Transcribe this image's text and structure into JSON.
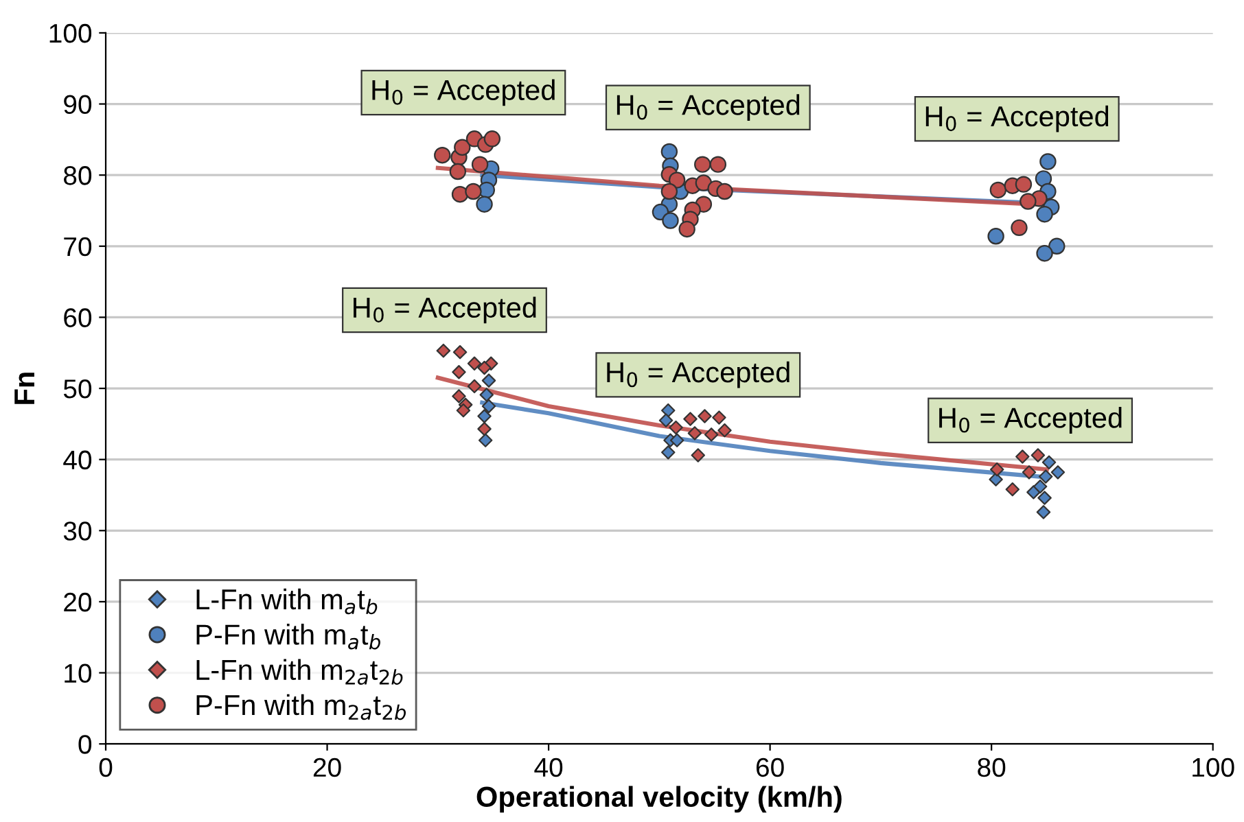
{
  "chart_data": {
    "type": "scatter",
    "xlabel": "Operational velocity (km/h)",
    "ylabel": "Fn",
    "xlim": [
      0,
      100
    ],
    "xticks": [
      0,
      20,
      40,
      60,
      80,
      100
    ],
    "ylim": [
      0,
      100
    ],
    "yticks": [
      0,
      10,
      20,
      30,
      40,
      50,
      60,
      70,
      80,
      90,
      100
    ],
    "grid": "y",
    "legend": "bottom left",
    "series": [
      {
        "name": "L-Fn with m$_{a}$t$_{b}$",
        "color": "#4f81bd",
        "marker": "diamond",
        "x": [
          34.6,
          34.4,
          34.6,
          34.2,
          34.3,
          50.8,
          50.6,
          51.0,
          50.8,
          51.6,
          85.2,
          86.0,
          84.9,
          80.4,
          83.8,
          84.8,
          84.7,
          84.4
        ],
        "values": [
          51.1,
          49.1,
          47.5,
          46.1,
          42.7,
          46.9,
          45.5,
          42.7,
          41.0,
          42.7,
          39.6,
          38.2,
          37.6,
          37.2,
          35.4,
          34.6,
          32.6,
          36.2
        ]
      },
      {
        "name": "P-Fn with m$_{a}$t$_{b}$",
        "color": "#4f81bd",
        "marker": "circle",
        "x": [
          34.8,
          34.6,
          34.4,
          34.2,
          50.9,
          51.0,
          51.9,
          50.9,
          50.1,
          51.0,
          85.1,
          84.7,
          85.1,
          85.4,
          84.8,
          80.4,
          85.9,
          84.8
        ],
        "values": [
          80.9,
          79.3,
          77.9,
          75.9,
          83.3,
          81.3,
          77.7,
          75.9,
          74.8,
          73.6,
          81.9,
          79.5,
          77.7,
          75.5,
          74.5,
          71.4,
          70.0,
          69.0
        ]
      },
      {
        "name": "L-Fn with m$_{2a}$t$_{2b}$",
        "color": "#c0504d",
        "marker": "diamond",
        "x": [
          30.5,
          32.0,
          33.3,
          34.8,
          31.9,
          34.2,
          33.3,
          31.9,
          32.5,
          32.3,
          34.2,
          52.8,
          54.1,
          55.4,
          55.9,
          54.7,
          53.2,
          53.5,
          51.5,
          82.8,
          84.2,
          80.5,
          83.4,
          81.9
        ],
        "values": [
          55.3,
          55.1,
          53.5,
          53.5,
          52.3,
          52.9,
          50.3,
          48.9,
          47.7,
          46.9,
          44.3,
          45.7,
          46.1,
          45.9,
          44.1,
          43.5,
          43.7,
          40.6,
          44.5,
          40.4,
          40.6,
          38.6,
          38.2,
          35.8
        ]
      },
      {
        "name": "P-Fn with m$_{2a}$t$_{2b}$",
        "color": "#c0504d",
        "marker": "circle",
        "x": [
          30.4,
          31.9,
          32.2,
          33.3,
          34.3,
          34.9,
          31.8,
          32.0,
          33.2,
          33.8,
          53.9,
          55.3,
          50.9,
          51.6,
          53.0,
          54.0,
          55.1,
          55.9,
          54.0,
          53.0,
          52.8,
          52.5,
          50.9,
          80.6,
          81.9,
          82.9,
          84.3,
          83.3,
          82.5
        ],
        "values": [
          82.8,
          82.5,
          83.9,
          85.1,
          84.3,
          85.1,
          80.5,
          77.3,
          77.7,
          81.5,
          81.5,
          81.5,
          80.1,
          79.3,
          78.5,
          78.9,
          78.1,
          77.7,
          75.9,
          75.1,
          73.8,
          72.4,
          77.7,
          77.9,
          78.5,
          78.7,
          76.7,
          76.3,
          72.6
        ]
      },
      {
        "type": "line",
        "color": "#4f81bd",
        "x": [
          34,
          40,
          50,
          60,
          70,
          85
        ],
        "values": [
          48.0,
          46.5,
          43.3,
          41.2,
          39.5,
          37.5
        ]
      },
      {
        "type": "line",
        "color": "#c0504d",
        "x": [
          30,
          35,
          40,
          50,
          60,
          70,
          85
        ],
        "values": [
          51.5,
          49.5,
          47.5,
          44.8,
          42.5,
          40.8,
          38.6
        ]
      },
      {
        "type": "line",
        "color": "#4f81bd",
        "x": [
          34,
          50,
          85
        ],
        "values": [
          80.0,
          78.3,
          76.0
        ]
      },
      {
        "type": "line",
        "color": "#c0504d",
        "x": [
          30,
          50,
          85
        ],
        "values": [
          81.0,
          78.5,
          75.8
        ]
      }
    ],
    "annotations": [
      "H$_{0}$ = Accepted",
      "H$_{0}$ = Accepted",
      "H$_{0}$ = Accepted",
      "H$_{0}$ = Accepted",
      "H$_{0}$ = Accepted",
      "H$_{0}$ = Accepted"
    ]
  }
}
